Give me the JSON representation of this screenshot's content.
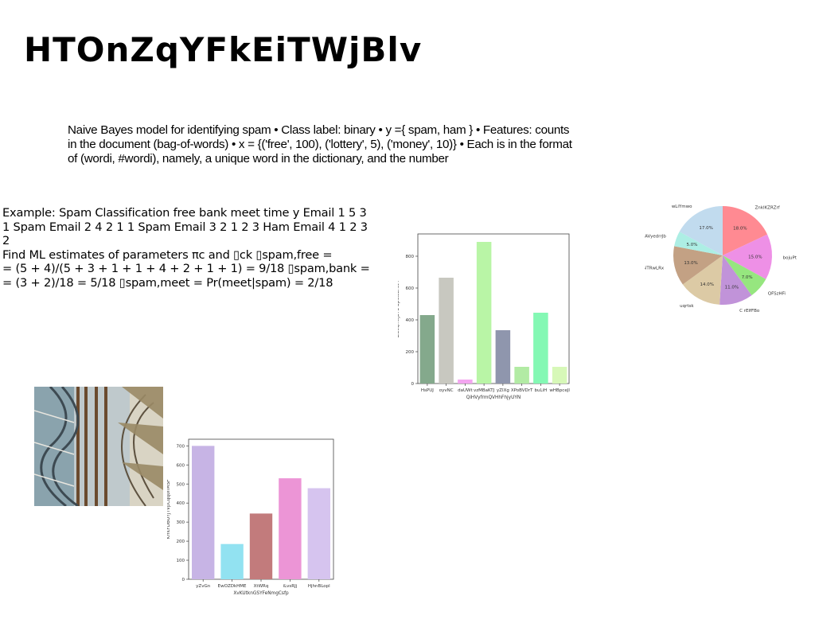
{
  "title": "HTOnZqYFkEiTWjBlv",
  "paragraph": "Naive Bayes model for identifying spam • Class label: binary • y ={ spam, ham } • Features: counts in the document (bag-of-words) • x = {('free', 100), ('lottery', 5), ('money', 10)} • Each is in the format of (wordi, #wordi), namely, a unique word in the dictionary, and the number",
  "example_lines": [
    "Example: Spam Classification free bank meet time y Email 1 5 3",
    "1 Spam Email 2 4 2 1 1 Spam Email 3 2 1 2 3 Ham Email 4 1 2 3 2",
    "Find ML estimates of parameters πc and ▯ck ▯spam,free =",
    "= (5 + 4)/(5 + 3 + 1 + 1 + 4 + 2 + 1 + 1) = 9/18 ▯spam,bank =",
    "= (3 + 2)/18 = 5/18 ▯spam,meet = Pr(meet|spam) = 2/18"
  ],
  "chart_data": [
    {
      "type": "bar",
      "xlabel": "QiHVyfrmQVHhFhjyUYN",
      "ylabel": "ZOsQnwJbTL UpClsERWY",
      "categories": [
        "HsPUJ",
        "oyvNC",
        "daUWt",
        "vzMBaKTJ",
        "yZIXg",
        "XPoBVDrT",
        "buLiH",
        "wHBpceJl"
      ],
      "values": [
        430,
        665,
        25,
        890,
        335,
        105,
        445,
        105
      ],
      "colors": [
        "#84a98c",
        "#c8c8c0",
        "#f3a6f0",
        "#b9f5a6",
        "#8f96ad",
        "#b2eba4",
        "#84f8b4",
        "#d7f8b8"
      ],
      "yticks": [
        0,
        200,
        400,
        600,
        800
      ],
      "ylim": [
        0,
        940
      ]
    },
    {
      "type": "pie",
      "labels": [
        "ZnkIKZRZrf",
        "bojuPt",
        "QFSzHFi",
        "C rEIfFBo",
        "uqrtsk",
        "lSiTRwLRx",
        "AVyedrrJb",
        "wLiYmwo"
      ],
      "values": [
        18.0,
        15.0,
        7.0,
        11.0,
        14.0,
        13.0,
        5.0,
        17.0
      ],
      "pct_labels": [
        "18.0%",
        "15.0%",
        "7.0%",
        "11.0%",
        "14.0%",
        "13.0%",
        "5.0%",
        "17.0%"
      ],
      "colors": [
        "#ff8a92",
        "#ee90e6",
        "#96e67f",
        "#c193d9",
        "#dccaa5",
        "#c3a184",
        "#adeee4",
        "#c1dbee"
      ]
    },
    {
      "type": "bar",
      "xlabel": "XvKUtknGSYFeNmgCsfp",
      "ylabel": "KmtFDBUYJTVpCqqonMSP",
      "categories": [
        "yZvGn",
        "EwOZDkHME",
        "XtWRq",
        "iLvsRJj",
        "HjhnBLopl"
      ],
      "values": [
        700,
        185,
        345,
        530,
        478
      ],
      "colors": [
        "#c7b4e5",
        "#92e2f1",
        "#c27b7c",
        "#ec95d6",
        "#d6c4ef"
      ],
      "yticks": [
        0,
        100,
        200,
        300,
        400,
        500,
        600,
        700
      ],
      "ylim": [
        0,
        735
      ]
    }
  ]
}
